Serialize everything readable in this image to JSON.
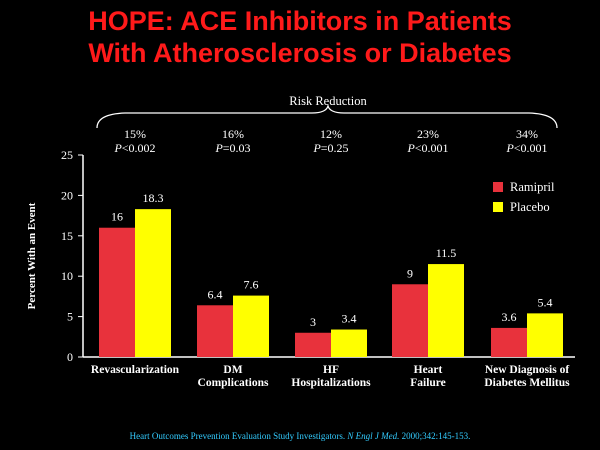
{
  "slide": {
    "title_line1": "HOPE: ACE Inhibitors in Patients",
    "title_line2": "With Atherosclerosis or Diabetes"
  },
  "citation": {
    "authors": "Heart Outcomes Prevention Evaluation Study Investigators.",
    "journal": "N Engl J Med.",
    "ref": "2000;342:145-153."
  },
  "colors": {
    "ramipril": "#e8323c",
    "placebo": "#ffff00",
    "background": "#000000",
    "title": "#ff1a1a",
    "citation": "#33ccff"
  },
  "chart_data": {
    "type": "bar",
    "ylabel": "Percent With an Event",
    "ylim": [
      0,
      25
    ],
    "yticks": [
      0,
      5,
      10,
      15,
      20,
      25
    ],
    "grid": false,
    "legend_position": "top-right",
    "categories": [
      [
        "Revascularization"
      ],
      [
        "DM",
        "Complications"
      ],
      [
        "HF",
        "Hospitalizations"
      ],
      [
        "Heart",
        "Failure"
      ],
      [
        "New Diagnosis of",
        "Diabetes Mellitus"
      ]
    ],
    "series": [
      {
        "name": "Ramipril",
        "values": [
          16,
          6.4,
          3,
          9,
          3.6
        ]
      },
      {
        "name": "Placebo",
        "values": [
          18.3,
          7.6,
          3.4,
          11.5,
          5.4
        ]
      }
    ],
    "annotation": {
      "label": "Risk Reduction",
      "items": [
        {
          "reduction": "15%",
          "p": "<0.002"
        },
        {
          "reduction": "16%",
          "p": "=0.03"
        },
        {
          "reduction": "12%",
          "p": "=0.25"
        },
        {
          "reduction": "23%",
          "p": "<0.001"
        },
        {
          "reduction": "34%",
          "p": "<0.001"
        }
      ]
    }
  }
}
